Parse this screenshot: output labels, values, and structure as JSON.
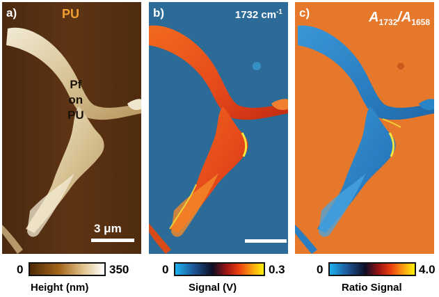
{
  "panels": [
    {
      "letter": "a)",
      "material_label": "PU",
      "region_label": [
        "Pf",
        "on",
        "PU"
      ],
      "scale_label": "3 μm",
      "colorbar": {
        "min": "0",
        "max": "350",
        "title": "Height (nm)",
        "colors": [
          "#4e2a05",
          "#a5661c",
          "#e1c48c",
          "#ffffff"
        ]
      }
    },
    {
      "letter": "b)",
      "wavenumber_label": "1732 cm",
      "wavenumber_exponent": "-1",
      "colorbar": {
        "min": "0",
        "max": "0.3",
        "title": "Signal (V)",
        "colors": [
          "#1fb1ee",
          "#1c5a9a",
          "#0d0d24",
          "#9c1412",
          "#ea3f10",
          "#fb9a10",
          "#fcf10a"
        ]
      }
    },
    {
      "letter": "c)",
      "ratio_label": {
        "a": "A",
        "sub_a": "1732",
        "slash": "/",
        "b": "A",
        "sub_b": "1658"
      },
      "colorbar": {
        "min": "0",
        "max": "4.0",
        "title": "Ratio Signal",
        "colors": [
          "#1fb1ee",
          "#1c5a9a",
          "#0d0d24",
          "#9c1412",
          "#ea3f10",
          "#fb9a10",
          "#fcf10a"
        ]
      }
    }
  ],
  "colors": {
    "height_background": "#5a3212",
    "height_fiber": "#e2d4ac",
    "signal_background": "#2c6c9a",
    "signal_fiber": "#e8501c",
    "ratio_background": "#e77a2c",
    "ratio_fiber": "#2a84c8",
    "highlight_yellow": "#f8e63a"
  }
}
